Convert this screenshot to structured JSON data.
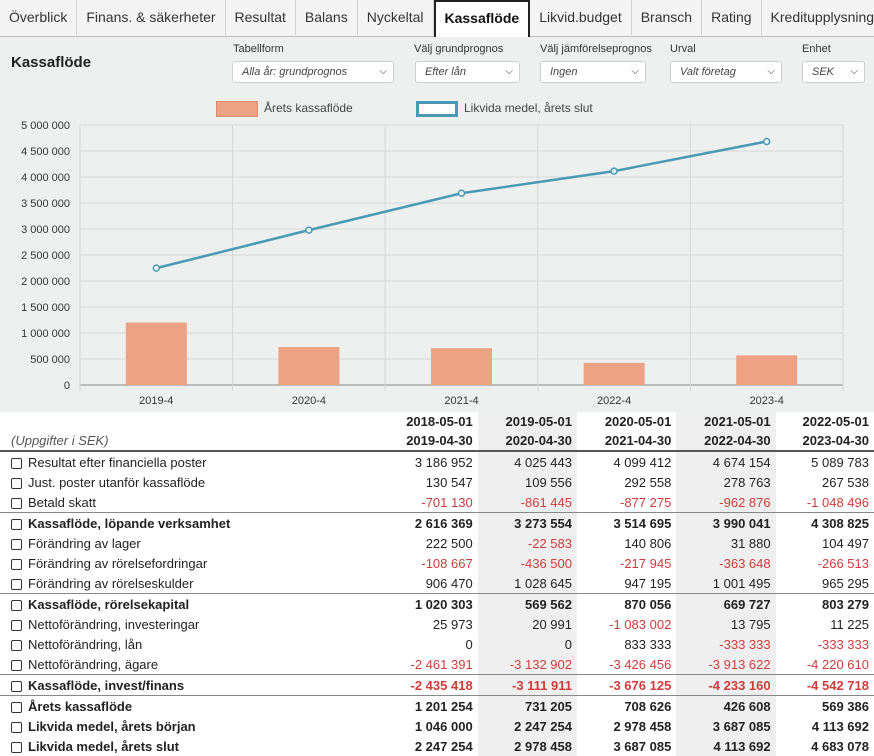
{
  "tabs": [
    {
      "label": "Överblick",
      "active": false
    },
    {
      "label": "Finans. & säkerheter",
      "active": false
    },
    {
      "label": "Resultat",
      "active": false
    },
    {
      "label": "Balans",
      "active": false
    },
    {
      "label": "Nyckeltal",
      "active": false
    },
    {
      "label": "Kassaflöde",
      "active": true
    },
    {
      "label": "Likvid.budget",
      "active": false
    },
    {
      "label": "Bransch",
      "active": false
    },
    {
      "label": "Rating",
      "active": false
    },
    {
      "label": "Kreditupplysning",
      "active": false
    }
  ],
  "page_title": "Kassaflöde",
  "filters": {
    "tabellform": {
      "label": "Tabellform",
      "value": "Alla år: grundprognos"
    },
    "grundprognos": {
      "label": "Välj grundprognos",
      "value": "Efter lån"
    },
    "jamforelse": {
      "label": "Välj jämförelseprognos",
      "value": "Ingen"
    },
    "urval": {
      "label": "Urval",
      "value": "Valt företag"
    },
    "enhet": {
      "label": "Enhet",
      "value": "SEK"
    }
  },
  "colors": {
    "bar": "#eda283",
    "line": "#4a9ab4",
    "negative": "#d03b3b"
  },
  "chart_data": {
    "type": "bar",
    "categories": [
      "2019-4",
      "2020-4",
      "2021-4",
      "2022-4",
      "2023-4"
    ],
    "series": [
      {
        "name": "Årets kassaflöde",
        "type": "bar",
        "values": [
          1201254,
          731205,
          708626,
          426608,
          569386
        ]
      },
      {
        "name": "Likvida medel, årets slut",
        "type": "line",
        "values": [
          2247254,
          2978458,
          3687085,
          4113692,
          4683078
        ]
      }
    ],
    "ylim": [
      0,
      5000000
    ],
    "yticks": [
      "0",
      "500 000",
      "1 000 000",
      "1 500 000",
      "2 000 000",
      "2 500 000",
      "3 000 000",
      "3 500 000",
      "4 000 000",
      "4 500 000",
      "5 000 000"
    ],
    "grid": true,
    "legend": "top"
  },
  "table": {
    "unit_note": "(Uppgifter i SEK)",
    "periods": [
      {
        "from": "2018-05-01",
        "to": "2019-04-30"
      },
      {
        "from": "2019-05-01",
        "to": "2020-04-30"
      },
      {
        "from": "2020-05-01",
        "to": "2021-04-30"
      },
      {
        "from": "2021-05-01",
        "to": "2022-04-30"
      },
      {
        "from": "2022-05-01",
        "to": "2023-04-30"
      }
    ],
    "rows": [
      {
        "label": "Resultat efter financiella poster",
        "values": [
          "3 186 952",
          "4 025 443",
          "4 099 412",
          "4 674 154",
          "5 089 783"
        ],
        "bold": false,
        "line": false
      },
      {
        "label": "Just. poster utanför kassaflöde",
        "values": [
          "130 547",
          "109 556",
          "292 558",
          "278 763",
          "267 538"
        ],
        "bold": false,
        "line": false
      },
      {
        "label": "Betald skatt",
        "values": [
          "-701 130",
          "-861 445",
          "-877 275",
          "-962 876",
          "-1 048 496"
        ],
        "bold": false,
        "line": false
      },
      {
        "label": "Kassaflöde, löpande verksamhet",
        "values": [
          "2 616 369",
          "3 273 554",
          "3 514 695",
          "3 990 041",
          "4 308 825"
        ],
        "bold": true,
        "line": true
      },
      {
        "label": "Förändring av lager",
        "values": [
          "222 500",
          "-22 583",
          "140 806",
          "31 880",
          "104 497"
        ],
        "bold": false,
        "line": false
      },
      {
        "label": "Förändring av rörelsefordringar",
        "values": [
          "-108 667",
          "-436 500",
          "-217 945",
          "-363 648",
          "-266 513"
        ],
        "bold": false,
        "line": false
      },
      {
        "label": "Förändring av rörelseskulder",
        "values": [
          "906 470",
          "1 028 645",
          "947 195",
          "1 001 495",
          "965 295"
        ],
        "bold": false,
        "line": false
      },
      {
        "label": "Kassaflöde, rörelsekapital",
        "values": [
          "1 020 303",
          "569 562",
          "870 056",
          "669 727",
          "803 279"
        ],
        "bold": true,
        "line": true
      },
      {
        "label": "Nettoförändring, investeringar",
        "values": [
          "25 973",
          "20 991",
          "-1 083 002",
          "13 795",
          "11 225"
        ],
        "bold": false,
        "line": false
      },
      {
        "label": "Nettoförändring, lån",
        "values": [
          "0",
          "0",
          "833 333",
          "-333 333",
          "-333 333"
        ],
        "bold": false,
        "line": false
      },
      {
        "label": "Nettoförändring, ägare",
        "values": [
          "-2 461 391",
          "-3 132 902",
          "-3 426 456",
          "-3 913 622",
          "-4 220 610"
        ],
        "bold": false,
        "line": false
      },
      {
        "label": "Kassaflöde, invest/finans",
        "values": [
          "-2 435 418",
          "-3 111 911",
          "-3 676 125",
          "-4 233 160",
          "-4 542 718"
        ],
        "bold": true,
        "line": true
      },
      {
        "label": "Årets kassaflöde",
        "values": [
          "1 201 254",
          "731 205",
          "708 626",
          "426 608",
          "569 386"
        ],
        "bold": true,
        "line": true
      },
      {
        "label": "Likvida medel, årets början",
        "values": [
          "1 046 000",
          "2 247 254",
          "2 978 458",
          "3 687 085",
          "4 113 692"
        ],
        "bold": true,
        "line": false
      },
      {
        "label": "Likvida medel, årets slut",
        "values": [
          "2 247 254",
          "2 978 458",
          "3 687 085",
          "4 113 692",
          "4 683 078"
        ],
        "bold": true,
        "line": false
      }
    ]
  }
}
